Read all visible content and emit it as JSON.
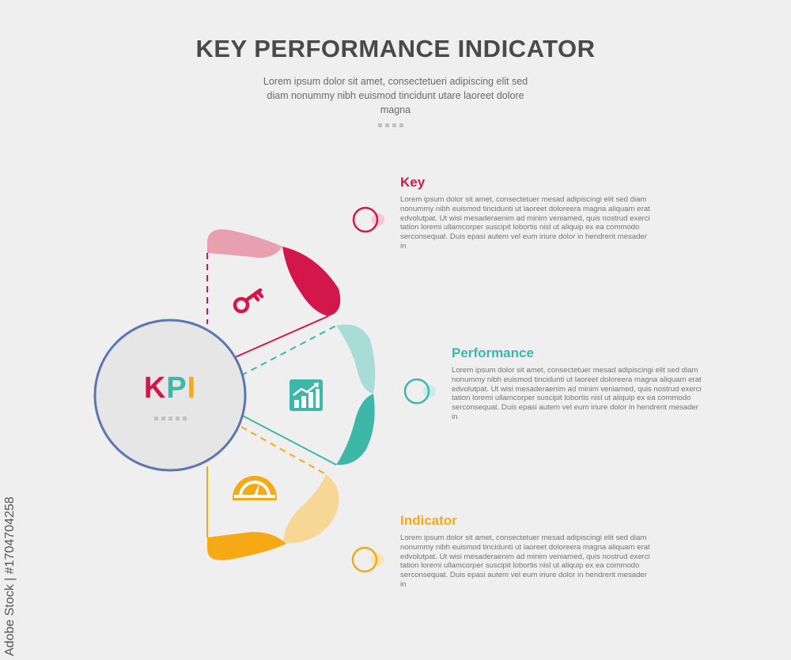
{
  "header": {
    "title": "KEY PERFORMANCE INDICATOR",
    "subtitle": "Lorem ipsum dolor sit amet, consectetueri adipiscing elit sed diam nonummy nibh euismod tincidunt utare laoreet dolore magna"
  },
  "center": {
    "letters": [
      "K",
      "P",
      "I"
    ],
    "letter_colors": [
      "#d3174a",
      "#3db7a8",
      "#f4a915"
    ],
    "border_color": "#5a76b3",
    "fill_color": "#e6e6e6"
  },
  "items": [
    {
      "heading": "Key",
      "color": "#d3174a",
      "light_color": "#e8a0b0",
      "icon": "key-icon",
      "text": "Lorem ipsum dolor sit amet, consectetuer mesad adipiscingi elit sed diam nonummy nibh euismod tincidunti ut laoreet doloreera magna aliquam erat edvolutpat. Ut wisi mesaderaenim ad minim veniamed, quis nostrud exerci tation loremi ullamcorper suscipit lobortis nisl ut aliquip ex ea commodo serconsequat. Duis epasi autem vel eum iriure dolor in hendrerit mesader in"
    },
    {
      "heading": "Performance",
      "color": "#3db7a8",
      "light_color": "#a8dcd6",
      "icon": "growth-chart-icon",
      "text": "Lorem ipsum dolor sit amet, consectetuer mesad adipiscingi elit sed diam nonummy nibh euismod tincidunti ut laoreet doloreera magna aliquam erat edvolutpat. Ut wisi mesaderaenim ad minim veniamed, quis nostrud exerci tation loremi ullamcorper suscipit lobortis nisl ut aliquip ex ea commodo serconsequat. Duis epasi autem vel eum iriure dolor in hendrerit mesader in"
    },
    {
      "heading": "Indicator",
      "color": "#f4a915",
      "light_color": "#f7d796",
      "icon": "speedometer-icon",
      "text": "Lorem ipsum dolor sit amet, consectetuer mesad adipiscingi elit sed diam nonummy nibh euismod tincidunti ut laoreet doloreera magna aliquam erat edvolutpat. Ut wisi mesaderaenim ad minim veniamed, quis nostrud exerci tation loremi ullamcorper suscipit lobortis nisl ut aliquip ex ea commodo serconsequat. Duis epasi autem vel eum iriure dolor in hendrerit mesader in"
    }
  ],
  "watermark": "Adobe Stock | #1704704258"
}
